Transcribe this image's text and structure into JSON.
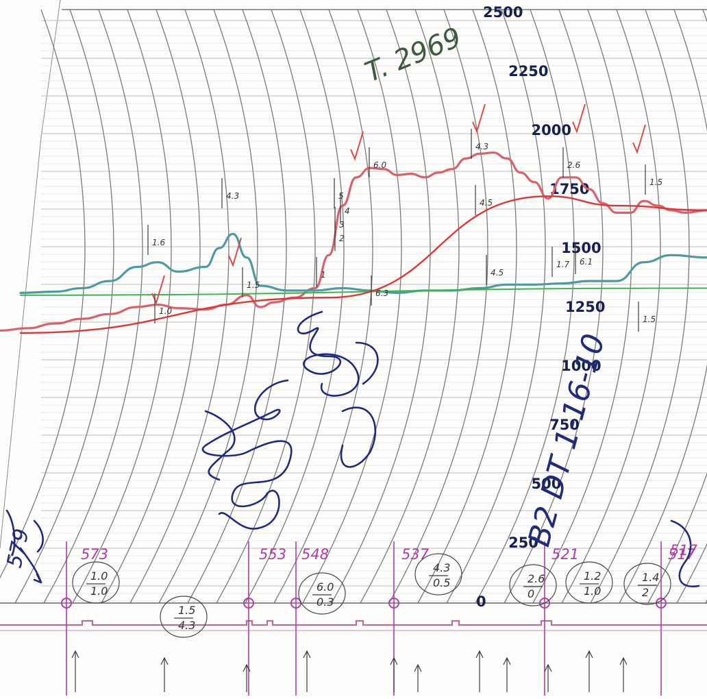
{
  "chart_data": {
    "type": "line",
    "title": "",
    "xlabel": "",
    "ylabel": "",
    "y_ticks": [
      "2500",
      "2250",
      "2000",
      "1750",
      "1500",
      "1250",
      "1000",
      "750",
      "500",
      "250",
      "0"
    ],
    "ylim": [
      0,
      2500
    ],
    "grid": "curved arc grid (recorder chart paper)",
    "series": [
      {
        "color": "#d9606c",
        "x": [
          0,
          40,
          80,
          120,
          160,
          200,
          230,
          260,
          300,
          330,
          360,
          380,
          400,
          430,
          460,
          480,
          500,
          520,
          540,
          560,
          580,
          600,
          620,
          640,
          660,
          680,
          700,
          720,
          740,
          760,
          780,
          800,
          820,
          840,
          860,
          880,
          900,
          920,
          940,
          960,
          980,
          1000,
          1032
        ],
        "y": [
          1150,
          1160,
          1180,
          1200,
          1220,
          1250,
          1260,
          1245,
          1240,
          1260,
          1300,
          1250,
          1270,
          1290,
          1330,
          1470,
          1680,
          1800,
          1840,
          1835,
          1810,
          1815,
          1800,
          1820,
          1835,
          1880,
          1900,
          1905,
          1880,
          1820,
          1780,
          1710,
          1800,
          1800,
          1750,
          1690,
          1650,
          1650,
          1700,
          1680,
          1660,
          1650,
          1660
        ]
      },
      {
        "color": "#4e9aa0",
        "x": [
          30,
          80,
          120,
          160,
          200,
          230,
          260,
          300,
          320,
          340,
          360,
          380,
          420,
          460,
          500,
          540,
          580,
          620,
          660,
          700,
          740,
          780,
          820,
          860,
          900,
          940,
          980,
          1032
        ],
        "y": [
          1310,
          1315,
          1330,
          1360,
          1420,
          1440,
          1400,
          1420,
          1500,
          1560,
          1460,
          1340,
          1320,
          1320,
          1330,
          1320,
          1310,
          1320,
          1320,
          1330,
          1345,
          1345,
          1350,
          1360,
          1360,
          1440,
          1470,
          1460
        ]
      },
      {
        "color": "#39b54a",
        "x": [
          30,
          1032
        ],
        "y": [
          1300,
          1330
        ]
      },
      {
        "color": "#e03535",
        "x": [
          30,
          480,
          800,
          900,
          1032
        ],
        "y": [
          1140,
          1290,
          1720,
          1680,
          1660
        ]
      }
    ],
    "annotations": [
      "4.3",
      "1.6",
      "1.0",
      "1.5",
      "6.0",
      "6.3",
      "4.5",
      "5",
      "4",
      "3",
      "2",
      "1",
      "4.3",
      "4.5",
      "2.6",
      "1.7",
      "1.5",
      "1.5",
      "6.1"
    ]
  },
  "handwriting": {
    "top_note": "T. 2969",
    "vertical_note": "B2 DT 1-16-10",
    "left_note": "579",
    "right_note": "517"
  },
  "footer": {
    "numbers": [
      "573",
      "553",
      "548",
      "537",
      "521",
      "517"
    ],
    "circles": [
      {
        "top": "1.0",
        "bottom": "1.0"
      },
      {
        "top": "1.5",
        "bottom": "4.3"
      },
      {
        "top": "6.0",
        "bottom": "0.3"
      },
      {
        "top": "4.3",
        "bottom": "0.5"
      },
      {
        "top": "2.6",
        "bottom": "0"
      },
      {
        "top": "1.2",
        "bottom": "1.0"
      },
      {
        "top": "1.4",
        "bottom": "2"
      }
    ]
  }
}
